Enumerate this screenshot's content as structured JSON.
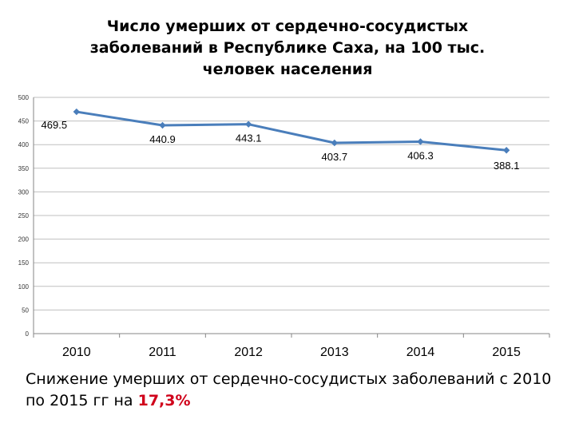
{
  "chart_data": {
    "type": "line",
    "title_lines": [
      "Число умерших от сердечно-сосудистых",
      "заболеваний в Республике Саха, на 100 тыс.",
      "человек населения"
    ],
    "categories": [
      "2010",
      "2011",
      "2012",
      "2013",
      "2014",
      "2015"
    ],
    "values": [
      469.5,
      440.9,
      443.1,
      403.7,
      406.3,
      388.1
    ],
    "data_labels": [
      "469.5",
      "440.9",
      "443.1",
      "403.7",
      "406.3",
      "388.1"
    ],
    "ylim": [
      0,
      500
    ],
    "yticks": [
      0,
      50,
      100,
      150,
      200,
      250,
      300,
      350,
      400,
      450,
      500
    ],
    "grid": true,
    "legend": "none",
    "line_color": "#4a7ebb"
  },
  "caption": {
    "text": "Снижение умерших от сердечно-сосудистых заболеваний с 2010 по 2015 гг на ",
    "highlight": "17,3%",
    "highlight_color": "#d0021b"
  }
}
